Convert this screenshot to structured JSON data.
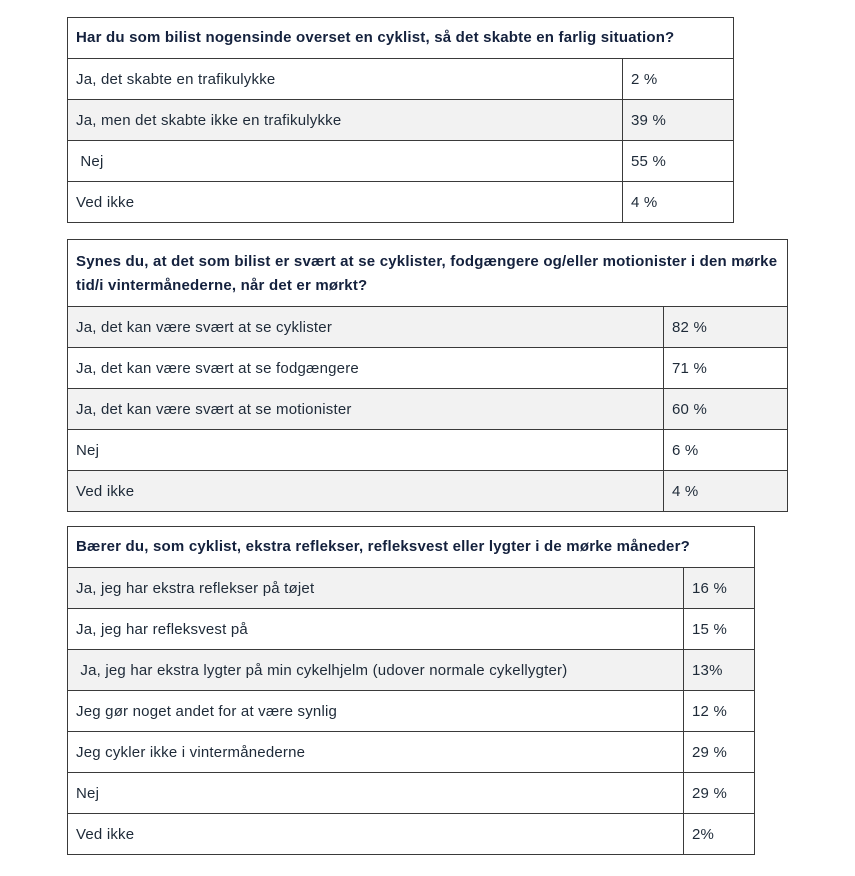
{
  "tables": [
    {
      "question": "Har du som bilist nogensinde overset en cyklist, så det skabte en farlig situation?",
      "rows": [
        {
          "label": "Ja, det skabte en trafikulykke",
          "value": "2 %"
        },
        {
          "label": "Ja, men det skabte ikke en trafikulykke",
          "value": "39 %"
        },
        {
          "label": " Nej",
          "value": "55 %"
        },
        {
          "label": "Ved ikke",
          "value": "4 %"
        }
      ]
    },
    {
      "question": "Synes du, at det som bilist er svært at se cyklister, fodgængere og/eller motionister i den mørke tid/i vintermånederne, når det er mørkt?",
      "rows": [
        {
          "label": "Ja, det kan være svært at se cyklister",
          "value": "82 %"
        },
        {
          "label": "Ja, det kan være svært at se fodgængere",
          "value": "71 %"
        },
        {
          "label": "Ja, det kan være svært at se motionister",
          "value": "60 %"
        },
        {
          "label": "Nej",
          "value": "6 %"
        },
        {
          "label": "Ved ikke",
          "value": "4 %"
        }
      ]
    },
    {
      "question": "Bærer du, som cyklist, ekstra reflekser, refleksvest eller lygter i de mørke måneder?",
      "rows": [
        {
          "label": "Ja, jeg har ekstra reflekser på tøjet",
          "value": "16 %"
        },
        {
          "label": "Ja, jeg har refleksvest på",
          "value": "15 %"
        },
        {
          "label": " Ja, jeg har ekstra lygter på min cykelhjelm (udover normale cykellygter)",
          "value": "13%"
        },
        {
          "label": "Jeg gør noget andet for at være synlig",
          "value": "12 %"
        },
        {
          "label": "Jeg cykler ikke i vintermånederne",
          "value": "29 %"
        },
        {
          "label": "Nej",
          "value": "29 %"
        },
        {
          "label": "Ved ikke",
          "value": "2%"
        }
      ]
    }
  ]
}
